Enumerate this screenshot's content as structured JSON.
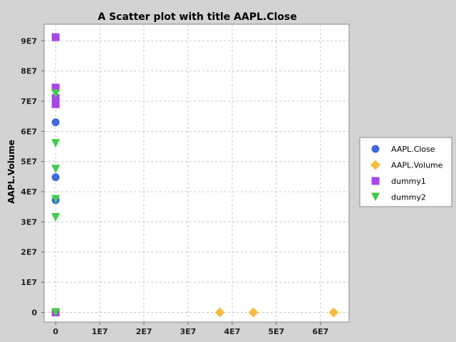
{
  "chart_data": {
    "type": "scatter",
    "title": "A Scatter plot with title AAPL.Close",
    "xlabel": "",
    "ylabel": "AAPL.Volume",
    "xlim": [
      -2600000,
      66500000
    ],
    "ylim": [
      -3200000,
      95500000
    ],
    "x_ticks": [
      0,
      10000000,
      20000000,
      30000000,
      40000000,
      50000000,
      60000000
    ],
    "x_tick_labels": [
      "0",
      "1E7",
      "2E7",
      "3E7",
      "4E7",
      "5E7",
      "6E7"
    ],
    "y_ticks": [
      0,
      10000000,
      20000000,
      30000000,
      40000000,
      50000000,
      60000000,
      70000000,
      80000000,
      90000000
    ],
    "y_tick_labels": [
      "0",
      "1E7",
      "2E7",
      "3E7",
      "4E7",
      "5E7",
      "6E7",
      "7E7",
      "8E7",
      "9E7"
    ],
    "grid": true,
    "legend_position": "right",
    "series": [
      {
        "name": "AAPL.Close",
        "marker": "circle",
        "color": "#4169e1",
        "points": [
          [
            0,
            63000000
          ],
          [
            0,
            44800000
          ],
          [
            0,
            37200000
          ],
          [
            0,
            0
          ]
        ]
      },
      {
        "name": "AAPL.Volume",
        "marker": "diamond",
        "color": "#f5be41",
        "points": [
          [
            37200000,
            0
          ],
          [
            44800000,
            0
          ],
          [
            63000000,
            0
          ]
        ]
      },
      {
        "name": "dummy1",
        "marker": "square",
        "color": "#a745e8",
        "points": [
          [
            0,
            91200000
          ],
          [
            0,
            74500000
          ],
          [
            0,
            71000000
          ],
          [
            0,
            69000000
          ],
          [
            0,
            0
          ]
        ]
      },
      {
        "name": "dummy2",
        "marker": "triangle-down",
        "color": "#41cc4a",
        "points": [
          [
            0,
            72500000
          ],
          [
            0,
            56000000
          ],
          [
            0,
            47500000
          ],
          [
            0,
            37500000
          ],
          [
            0,
            31500000
          ],
          [
            0,
            0
          ]
        ]
      }
    ]
  }
}
